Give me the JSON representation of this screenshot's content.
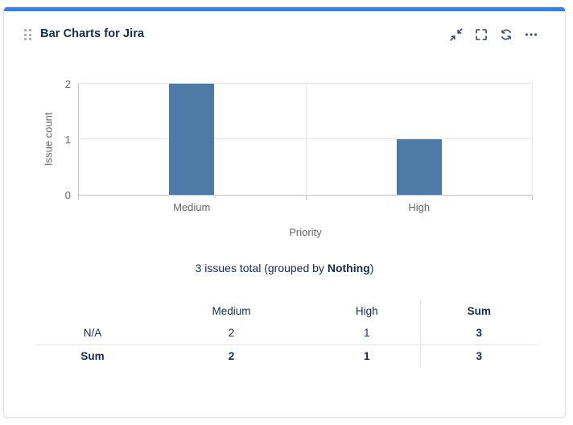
{
  "gadget": {
    "title": "Bar Charts for Jira",
    "accent_color": "#2684FF",
    "actions": [
      {
        "name": "minimize",
        "icon": "collapse-icon"
      },
      {
        "name": "fullscreen",
        "icon": "fullscreen-icon"
      },
      {
        "name": "refresh",
        "icon": "refresh-icon"
      },
      {
        "name": "more-options",
        "icon": "more-options-icon"
      }
    ]
  },
  "chart_data": {
    "type": "bar",
    "categories": [
      "Medium",
      "High"
    ],
    "values": [
      2,
      1
    ],
    "title": "",
    "xlabel": "Priority",
    "ylabel": "Issue count",
    "ylim": [
      0,
      2
    ],
    "yticks": [
      0,
      1,
      2
    ],
    "bar_color": "#4d7aa6",
    "grid": true,
    "legend": "none"
  },
  "summary": {
    "prefix": "3 issues total (grouped by ",
    "bold": "Nothing",
    "suffix": ")"
  },
  "summary_table": {
    "columns": [
      "",
      "Medium",
      "High",
      "Sum"
    ],
    "rows": [
      {
        "label": "N/A",
        "medium": "2",
        "high": "1",
        "sum": "3"
      },
      {
        "label": "Sum",
        "medium": "2",
        "high": "1",
        "sum": "3"
      }
    ]
  }
}
